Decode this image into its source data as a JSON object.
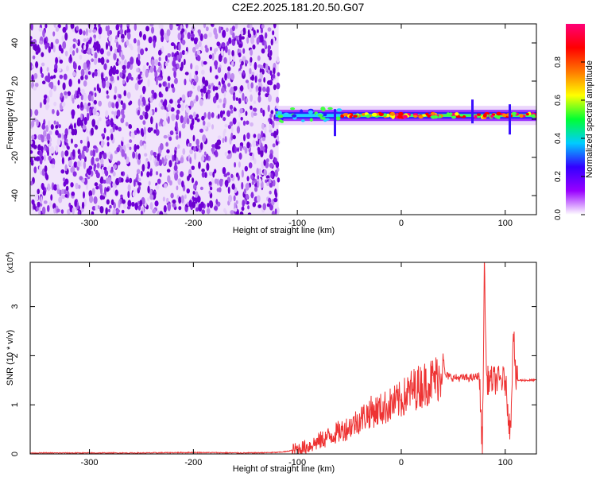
{
  "title": "C2E2.2025.181.20.50.G07",
  "chart_data": [
    {
      "type": "heatmap",
      "xlabel": "Height of straight line (km)",
      "ylabel": "Frequency (Hz)",
      "xlim": [
        -357,
        130
      ],
      "ylim": [
        -50,
        50
      ],
      "xticks": [
        -300,
        -200,
        -100,
        0,
        100
      ],
      "yticks": [
        -40,
        -20,
        0,
        20,
        40
      ],
      "noise_region_x": [
        -357,
        -118
      ],
      "signal_line_frequency_hz": 2,
      "colorbar": {
        "label": "Normalized spectral amplitude",
        "range": [
          0,
          1
        ],
        "ticks": [
          "0.0",
          "0.2",
          "0.4",
          "0.6",
          "0.8"
        ],
        "colors": [
          "#ffffff",
          "#9900ff",
          "#3300ff",
          "#00ccff",
          "#00ff33",
          "#ffff00",
          "#ff7700",
          "#ff0000",
          "#ff0077"
        ]
      }
    },
    {
      "type": "line",
      "xlabel": "Height of straight line (km)",
      "ylabel": "SNR (10 * v/v)",
      "yscale_label": "(x10",
      "yscale_exp": "4",
      "xlim": [
        -357,
        130
      ],
      "ylim": [
        0,
        3.9
      ],
      "xticks": [
        -300,
        -200,
        -100,
        0,
        100
      ],
      "yticks": [
        0,
        1,
        2,
        3
      ],
      "color": "#ee3333",
      "series": [
        {
          "x": [
            -357,
            -300,
            -250,
            -200,
            -150,
            -120,
            -110,
            -100,
            -90,
            -80,
            -70,
            -60,
            -50,
            -40,
            -30,
            -20,
            -10,
            0,
            10,
            20,
            30,
            38,
            40,
            42,
            50,
            60,
            70,
            75,
            78,
            80,
            82,
            90,
            100,
            105,
            108,
            110,
            115,
            120,
            130
          ],
          "y": [
            0.02,
            0.02,
            0.02,
            0.03,
            0.02,
            0.03,
            0.05,
            0.1,
            0.15,
            0.25,
            0.35,
            0.45,
            0.55,
            0.7,
            0.85,
            0.9,
            1.0,
            1.1,
            1.3,
            1.4,
            1.5,
            1.6,
            2.1,
            1.6,
            1.55,
            1.55,
            1.55,
            1.6,
            0.1,
            3.9,
            1.5,
            1.5,
            1.5,
            0.4,
            2.7,
            1.5,
            1.5,
            1.5,
            1.5
          ]
        }
      ]
    }
  ]
}
